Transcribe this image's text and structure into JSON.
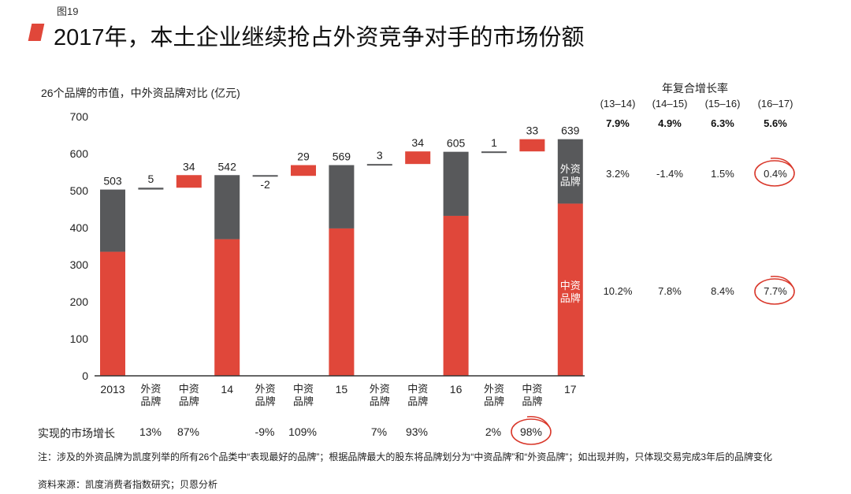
{
  "figure_number": "图19",
  "title": "2017年，本土企业继续抢占外资竞争对手的市场份额",
  "colors": {
    "domestic": "#e0473a",
    "foreign": "#58595b",
    "axis": "#333333",
    "circle": "#d9382b"
  },
  "chart_data": {
    "type": "bar",
    "subtype": "waterfall",
    "title": "2017年，本土企业继续抢占外资竞争对手的市场份额",
    "ylabel": "26个品牌的市值，中外资品牌对比 (亿元)",
    "ylim": [
      0,
      700
    ],
    "yticks": [
      0,
      100,
      200,
      300,
      400,
      500,
      600,
      700
    ],
    "categories": [
      "2013",
      "外资品牌",
      "中资品牌",
      "14",
      "外资品牌",
      "中资品牌",
      "15",
      "外资品牌",
      "中资品牌",
      "16",
      "外资品牌",
      "中资品牌",
      "17"
    ],
    "bars": [
      {
        "kind": "total",
        "label": "503",
        "domestic": 335,
        "foreign": 168
      },
      {
        "kind": "foreign_delta",
        "label": "5",
        "base": 503,
        "value": 5
      },
      {
        "kind": "domestic_delta",
        "label": "34",
        "base": 508,
        "value": 34
      },
      {
        "kind": "total",
        "label": "542",
        "domestic": 369,
        "foreign": 173
      },
      {
        "kind": "foreign_delta",
        "label": "-2",
        "base": 542,
        "value": -2
      },
      {
        "kind": "domestic_delta",
        "label": "29",
        "base": 540,
        "value": 29
      },
      {
        "kind": "total",
        "label": "569",
        "domestic": 398,
        "foreign": 171
      },
      {
        "kind": "foreign_delta",
        "label": "3",
        "base": 569,
        "value": 3
      },
      {
        "kind": "domestic_delta",
        "label": "34",
        "base": 572,
        "value": 34
      },
      {
        "kind": "total",
        "label": "605",
        "domestic": 432,
        "foreign": 173
      },
      {
        "kind": "foreign_delta",
        "label": "1",
        "base": 605,
        "value": 1
      },
      {
        "kind": "domestic_delta",
        "label": "33",
        "base": 606,
        "value": 33
      },
      {
        "kind": "total",
        "label": "639",
        "domestic": 465,
        "foreign": 174
      }
    ],
    "legend": {
      "foreign": "外资品牌",
      "domestic": "中资品牌"
    }
  },
  "cagr": {
    "title": "年复合增长率",
    "periods": [
      "(13–14)",
      "(14–15)",
      "(15–16)",
      "(16–17)"
    ],
    "total": [
      "7.9%",
      "4.9%",
      "6.3%",
      "5.6%"
    ],
    "foreign": [
      "3.2%",
      "-1.4%",
      "1.5%",
      "0.4%"
    ],
    "domestic": [
      "10.2%",
      "7.8%",
      "8.4%",
      "7.7%"
    ]
  },
  "growth": {
    "label": "实现的市场增长",
    "values": [
      "13%",
      "87%",
      "-9%",
      "109%",
      "7%",
      "93%",
      "2%",
      "98%"
    ]
  },
  "note": "注：涉及的外资品牌为凯度列举的所有26个品类中“表现最好的品牌”；根据品牌最大的股东将品牌划分为“中资品牌”和“外资品牌”；如出现并购，只体现交易完成3年后的品牌变化",
  "source": "资料来源：凯度消费者指数研究；贝恩分析"
}
